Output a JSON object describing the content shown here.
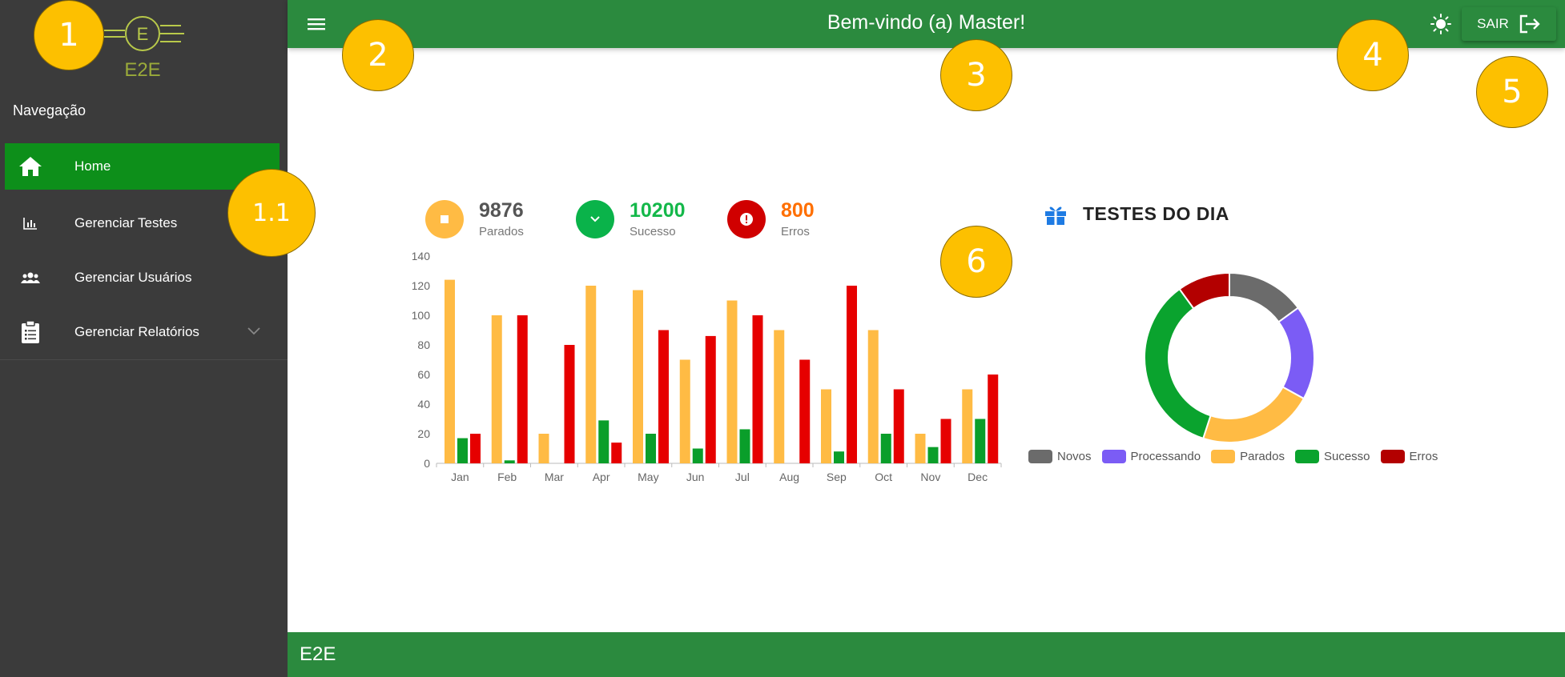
{
  "sidebar": {
    "logo_letter": "E",
    "logo_text": "E2E",
    "nav_title": "Navegação",
    "items": [
      {
        "label": "Home",
        "icon": "home-icon"
      },
      {
        "label": "Gerenciar Testes",
        "icon": "bar-chart-icon"
      },
      {
        "label": "Gerenciar Usuários",
        "icon": "users-icon"
      },
      {
        "label": "Gerenciar Relatórios",
        "icon": "clipboard-icon"
      }
    ]
  },
  "header": {
    "title": "Bem-vindo (a) Master!",
    "logout_label": "SAIR"
  },
  "footer": {
    "text": "E2E"
  },
  "callouts": {
    "c1": "1",
    "c11": "1.1",
    "c2": "2",
    "c3": "3",
    "c4": "4",
    "c5": "5",
    "c6": "6"
  },
  "stats": [
    {
      "value": "9876",
      "label": "Parados",
      "color": "#f7a93a"
    },
    {
      "value": "10200",
      "label": "Sucesso",
      "color": "#14b84a"
    },
    {
      "value": "800",
      "label": "Erros",
      "color": "#ff6f00"
    }
  ],
  "donut_title": "TESTES DO DIA",
  "colors": {
    "brand_green": "#2b8a3e",
    "active_green": "#0d8f1a",
    "sidebar_bg": "#3b3b3b",
    "callout": "#fdc000"
  },
  "chart_data": [
    {
      "type": "bar",
      "categories": [
        "Jan",
        "Feb",
        "Mar",
        "Apr",
        "May",
        "Jun",
        "Jul",
        "Aug",
        "Sep",
        "Oct",
        "Nov",
        "Dec"
      ],
      "series": [
        {
          "values": [
            124,
            100,
            20,
            120,
            117,
            70,
            110,
            90,
            50,
            90,
            20,
            50
          ],
          "color": "#ffbb44"
        },
        {
          "values": [
            17,
            2,
            0,
            29,
            20,
            10,
            23,
            0,
            8,
            20,
            11,
            30
          ],
          "color": "#0a9e2a"
        },
        {
          "values": [
            20,
            100,
            80,
            14,
            90,
            86,
            100,
            70,
            120,
            50,
            30,
            60
          ],
          "color": "#e60000"
        }
      ],
      "ylim": [
        0,
        140
      ],
      "yticks": [
        0,
        20,
        40,
        60,
        80,
        100,
        120,
        140
      ],
      "grid": false
    },
    {
      "type": "pie",
      "labels": [
        "Novos",
        "Processando",
        "Parados",
        "Sucesso",
        "Erros"
      ],
      "values": [
        15,
        18,
        22,
        35,
        10
      ],
      "colors": [
        "#6b6b6b",
        "#7b5cf5",
        "#ffbb44",
        "#0aa32e",
        "#b30000"
      ],
      "legend": "bottom"
    }
  ]
}
